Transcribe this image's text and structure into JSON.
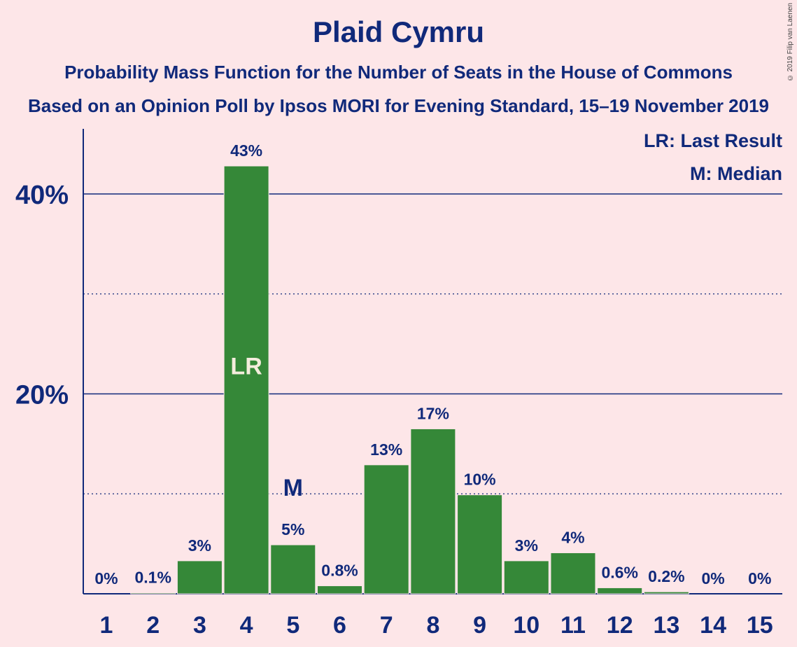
{
  "chart_data": {
    "type": "bar",
    "title": "Plaid Cymru",
    "subtitle": "Probability Mass Function for the Number of Seats in the House of Commons",
    "subtitle2": "Based on an Opinion Poll by Ipsos MORI for Evening Standard, 15–19 November 2019",
    "copyright": "© 2019 Filip van Laenen",
    "legend": {
      "last_result": "LR: Last Result",
      "median": "M: Median",
      "placement": "top-right"
    },
    "categories": [
      "1",
      "2",
      "3",
      "4",
      "5",
      "6",
      "7",
      "8",
      "9",
      "10",
      "11",
      "12",
      "13",
      "14",
      "15"
    ],
    "values": [
      0,
      0.1,
      3.3,
      42.8,
      4.9,
      0.8,
      12.9,
      16.5,
      9.9,
      3.3,
      4.1,
      0.6,
      0.2,
      0,
      0
    ],
    "value_labels": [
      "0%",
      "0.1%",
      "3%",
      "43%",
      "5%",
      "0.8%",
      "13%",
      "17%",
      "10%",
      "3%",
      "4%",
      "0.6%",
      "0.2%",
      "0%",
      "0%"
    ],
    "ylim": [
      0,
      46
    ],
    "ytick_labels": [
      {
        "value": 20,
        "label": "20%"
      },
      {
        "value": 40,
        "label": "40%"
      }
    ],
    "minor_gridlines": [
      10,
      30
    ],
    "annotations": [
      {
        "category": "4",
        "label": "LR"
      },
      {
        "category": "5",
        "label": "M"
      }
    ],
    "bar_color": "#358838",
    "background_color": "#fde6e8",
    "text_color": "#10297a"
  }
}
